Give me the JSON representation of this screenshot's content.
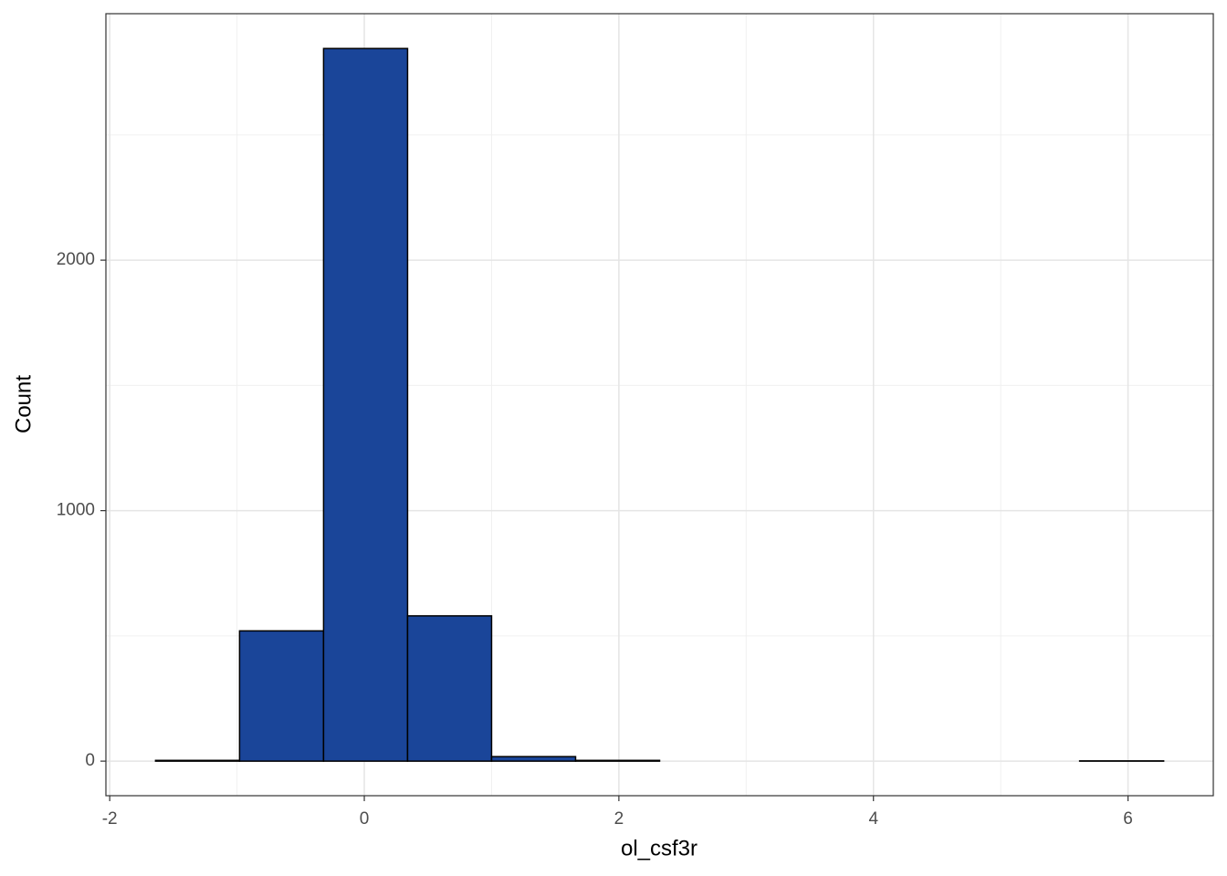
{
  "chart_data": {
    "type": "histogram",
    "x_label": "ol_csf3r",
    "y_label": "Count",
    "bins": [
      -1.64,
      -0.98,
      -0.32,
      0.34,
      1.0,
      1.66,
      2.32,
      2.98,
      3.64,
      4.3,
      4.96,
      5.62,
      6.28
    ],
    "values": [
      3,
      520,
      2845,
      580,
      18,
      3,
      0,
      0,
      0,
      0,
      0,
      1
    ],
    "color": "#1a4599",
    "edge_color": "#000000",
    "xlim": [
      -2.03,
      6.67
    ],
    "ylim": [
      -138,
      2984
    ],
    "xticks": [
      -2,
      0,
      2,
      4,
      6
    ],
    "yticks": [
      0,
      1000,
      2000
    ],
    "x_minor_grid": [
      -1,
      1,
      3,
      5
    ],
    "y_minor_grid": [
      500,
      1500,
      2500
    ],
    "grid": true
  }
}
